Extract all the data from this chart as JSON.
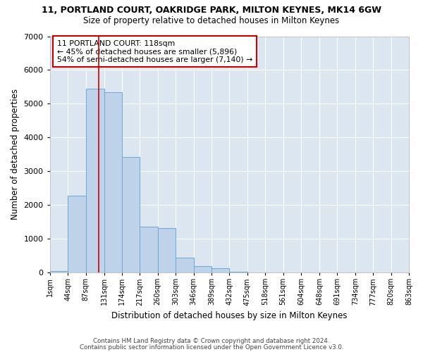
{
  "title": "11, PORTLAND COURT, OAKRIDGE PARK, MILTON KEYNES, MK14 6GW",
  "subtitle": "Size of property relative to detached houses in Milton Keynes",
  "xlabel": "Distribution of detached houses by size in Milton Keynes",
  "ylabel": "Number of detached properties",
  "footer1": "Contains HM Land Registry data © Crown copyright and database right 2024.",
  "footer2": "Contains public sector information licensed under the Open Government Licence v3.0.",
  "property_label": "11 PORTLAND COURT: 118sqm",
  "arrow_left": "← 45% of detached houses are smaller (5,896)",
  "arrow_right": "54% of semi-detached houses are larger (7,140) →",
  "property_size": 118,
  "bar_edges": [
    1,
    44,
    87,
    131,
    174,
    217,
    260,
    303,
    346,
    389,
    432,
    475,
    518,
    561,
    604,
    648,
    691,
    734,
    777,
    820,
    863
  ],
  "bar_heights": [
    50,
    2280,
    5450,
    5350,
    3420,
    1360,
    1310,
    435,
    200,
    120,
    35,
    0,
    0,
    0,
    0,
    0,
    0,
    0,
    0,
    0
  ],
  "bar_color": "#bed3ea",
  "bar_edge_color": "#6fa8d4",
  "redline_color": "#cc0000",
  "bg_color": "#dce6f1",
  "grid_color": "#ffffff",
  "box_color": "#cc0000",
  "fig_bg": "#ffffff",
  "ylim": [
    0,
    7000
  ],
  "yticks": [
    0,
    1000,
    2000,
    3000,
    4000,
    5000,
    6000,
    7000
  ]
}
